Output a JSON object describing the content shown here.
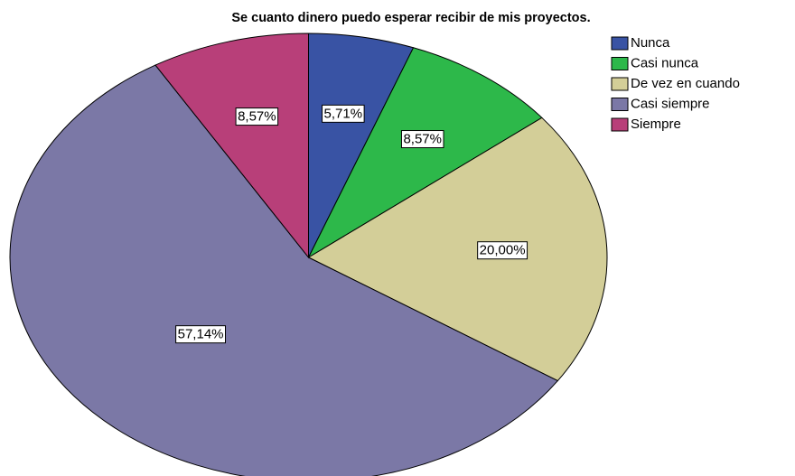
{
  "chart_data": {
    "type": "pie",
    "title": "Se cuanto dinero puedo esperar recibir de mis proyectos.",
    "categories": [
      "Nunca",
      "Casi nunca",
      "De vez en cuando",
      "Casi siempre",
      "Siempre"
    ],
    "values": [
      5.71,
      8.57,
      20.0,
      57.14,
      8.57
    ],
    "value_labels": [
      "5,71%",
      "8,57%",
      "20,00%",
      "57,14%",
      "8,57%"
    ],
    "colors": [
      "#3953a4",
      "#2db84a",
      "#d3ce98",
      "#7b78a6",
      "#b83f79"
    ]
  }
}
